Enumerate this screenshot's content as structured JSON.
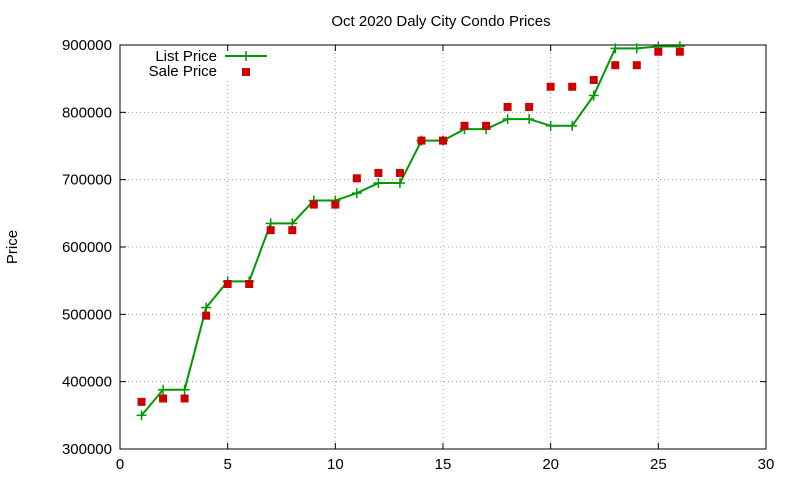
{
  "chart_data": {
    "type": "line",
    "title": "Oct 2020 Daly City Condo Prices",
    "xlabel": "",
    "ylabel": "Price",
    "xlim": [
      0,
      30
    ],
    "ylim": [
      300000,
      900000
    ],
    "x_ticks": [
      0,
      5,
      10,
      15,
      20,
      25,
      30
    ],
    "y_ticks": [
      300000,
      400000,
      500000,
      600000,
      700000,
      800000,
      900000
    ],
    "grid": true,
    "legend_position": "top-left",
    "series": [
      {
        "name": "List Price",
        "style": "line-with-plus-markers",
        "color": "#009900",
        "x": [
          1,
          2,
          3,
          4,
          5,
          6,
          7,
          8,
          9,
          10,
          11,
          12,
          13,
          14,
          15,
          16,
          17,
          18,
          19,
          20,
          21,
          22,
          23,
          24,
          25,
          26
        ],
        "values": [
          350000,
          388000,
          388000,
          510000,
          549000,
          549000,
          635000,
          635000,
          669000,
          669000,
          680000,
          695000,
          695000,
          758000,
          758000,
          775000,
          775000,
          790000,
          790000,
          780000,
          780000,
          825000,
          895000,
          895000,
          898000,
          898000
        ]
      },
      {
        "name": "Sale Price",
        "style": "square-markers",
        "color": "#cc0000",
        "x": [
          1,
          2,
          3,
          4,
          5,
          6,
          7,
          8,
          9,
          10,
          11,
          12,
          13,
          14,
          15,
          16,
          17,
          18,
          19,
          20,
          21,
          22,
          23,
          24,
          25,
          26
        ],
        "values": [
          370000,
          375000,
          375000,
          498000,
          545000,
          545000,
          625000,
          625000,
          663000,
          663000,
          702000,
          710000,
          710000,
          758000,
          758000,
          780000,
          780000,
          808000,
          808000,
          838000,
          838000,
          848000,
          870000,
          870000,
          890000,
          890000
        ]
      }
    ]
  }
}
